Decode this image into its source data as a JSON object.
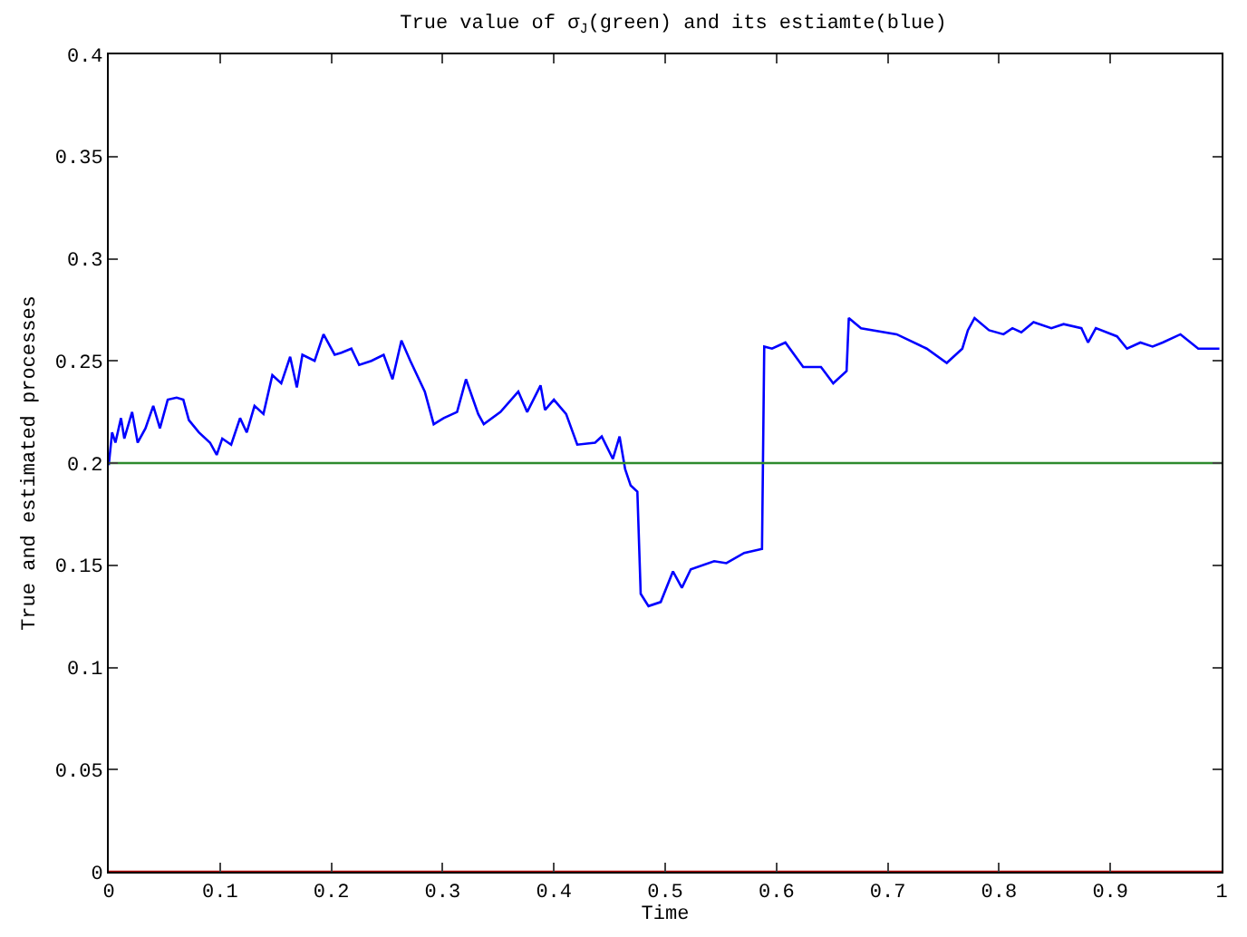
{
  "chart_data": {
    "type": "line",
    "title": "True value of σ$_{J}$(green) and its estiamte(blue)",
    "xlabel": "Time",
    "ylabel": "True and estimated processes",
    "xlim": [
      0,
      1
    ],
    "ylim": [
      0,
      0.4
    ],
    "xticks": [
      0,
      0.1,
      0.2,
      0.3,
      0.4,
      0.5,
      0.6,
      0.7,
      0.8,
      0.9,
      1
    ],
    "yticks": [
      0,
      0.05,
      0.1,
      0.15,
      0.2,
      0.25,
      0.3,
      0.35,
      0.4
    ],
    "legend": false,
    "marker": "none",
    "line_style": "solid",
    "series": [
      {
        "color": "#0000ff",
        "x": [
          0,
          0.003,
          0.006,
          0.011,
          0.014,
          0.021,
          0.026,
          0.033,
          0.04,
          0.046,
          0.053,
          0.061,
          0.067,
          0.072,
          0.081,
          0.091,
          0.097,
          0.102,
          0.11,
          0.118,
          0.124,
          0.131,
          0.139,
          0.147,
          0.155,
          0.163,
          0.169,
          0.174,
          0.185,
          0.193,
          0.203,
          0.209,
          0.218,
          0.225,
          0.236,
          0.247,
          0.255,
          0.263,
          0.271,
          0.284,
          0.292,
          0.301,
          0.313,
          0.321,
          0.332,
          0.337,
          0.352,
          0.368,
          0.376,
          0.388,
          0.392,
          0.4,
          0.411,
          0.421,
          0.437,
          0.443,
          0.453,
          0.459,
          0.464,
          0.469,
          0.475,
          0.478,
          0.485,
          0.496,
          0.507,
          0.515,
          0.523,
          0.544,
          0.555,
          0.571,
          0.587,
          0.589,
          0.596,
          0.608,
          0.624,
          0.64,
          0.651,
          0.663,
          0.665,
          0.676,
          0.708,
          0.735,
          0.753,
          0.767,
          0.772,
          0.778,
          0.791,
          0.804,
          0.812,
          0.82,
          0.831,
          0.847,
          0.858,
          0.874,
          0.88,
          0.887,
          0.906,
          0.915,
          0.927,
          0.938,
          0.947,
          0.963,
          0.979,
          0.998
        ],
        "values": [
          0.199,
          0.215,
          0.21,
          0.222,
          0.212,
          0.225,
          0.21,
          0.217,
          0.228,
          0.217,
          0.231,
          0.232,
          0.231,
          0.221,
          0.215,
          0.21,
          0.204,
          0.212,
          0.209,
          0.222,
          0.215,
          0.228,
          0.224,
          0.243,
          0.239,
          0.252,
          0.237,
          0.253,
          0.25,
          0.263,
          0.253,
          0.254,
          0.256,
          0.248,
          0.25,
          0.253,
          0.241,
          0.26,
          0.25,
          0.235,
          0.219,
          0.222,
          0.225,
          0.241,
          0.224,
          0.219,
          0.225,
          0.235,
          0.225,
          0.238,
          0.226,
          0.231,
          0.224,
          0.209,
          0.21,
          0.213,
          0.202,
          0.213,
          0.197,
          0.189,
          0.186,
          0.136,
          0.13,
          0.132,
          0.147,
          0.139,
          0.148,
          0.152,
          0.151,
          0.156,
          0.158,
          0.257,
          0.256,
          0.259,
          0.247,
          0.247,
          0.239,
          0.245,
          0.271,
          0.266,
          0.263,
          0.256,
          0.249,
          0.256,
          0.265,
          0.271,
          0.265,
          0.263,
          0.266,
          0.264,
          0.269,
          0.266,
          0.268,
          0.266,
          0.259,
          0.266,
          0.262,
          0.256,
          0.259,
          0.257,
          0.259,
          0.263,
          0.256,
          0.256
        ]
      },
      {
        "color": "#2e8b2e",
        "x": [
          0,
          1
        ],
        "values": [
          0.2,
          0.2
        ]
      },
      {
        "color": "#b00000",
        "x": [
          0,
          1
        ],
        "values": [
          0,
          0
        ]
      }
    ]
  }
}
